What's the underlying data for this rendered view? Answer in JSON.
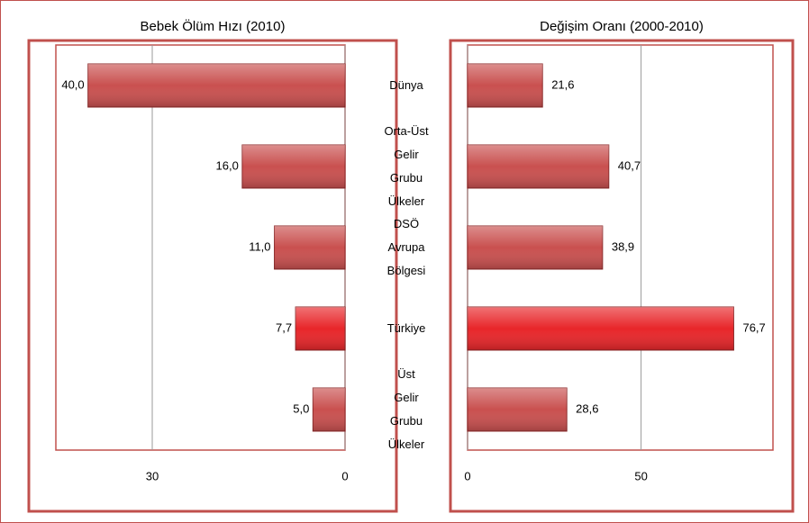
{
  "chart_data": [
    {
      "type": "bar",
      "title": "Bebek Ölüm Hızı (2010)",
      "categories": [
        "Dünya",
        "Orta-Üst Gelir Grubu Ülkeler",
        "DSÖ Avrupa Bölgesi",
        "Türkiye",
        "Üst Gelir Grubu Ülkeler"
      ],
      "values": [
        40.0,
        16.0,
        11.0,
        7.7,
        5.0
      ],
      "value_labels": [
        "40,0",
        "16,0",
        "11,0",
        "7,7",
        "5,0"
      ],
      "colors": [
        "#c9504f",
        "#c9504f",
        "#c9504f",
        "#e8262a",
        "#c9504f"
      ],
      "xlim": [
        45,
        0
      ],
      "xticks": [
        30,
        0
      ],
      "grid": true
    },
    {
      "type": "bar",
      "title": "Değişim Oranı (2000-2010)",
      "values": [
        21.6,
        40.7,
        38.9,
        76.7,
        28.6
      ],
      "value_labels": [
        "21,6",
        "40,7",
        "38,9",
        "76,7",
        "28,6"
      ],
      "colors": [
        "#c9504f",
        "#c9504f",
        "#c9504f",
        "#e8262a",
        "#c9504f"
      ],
      "xlim": [
        0,
        88
      ],
      "xticks": [
        0,
        50
      ],
      "grid": true
    }
  ]
}
